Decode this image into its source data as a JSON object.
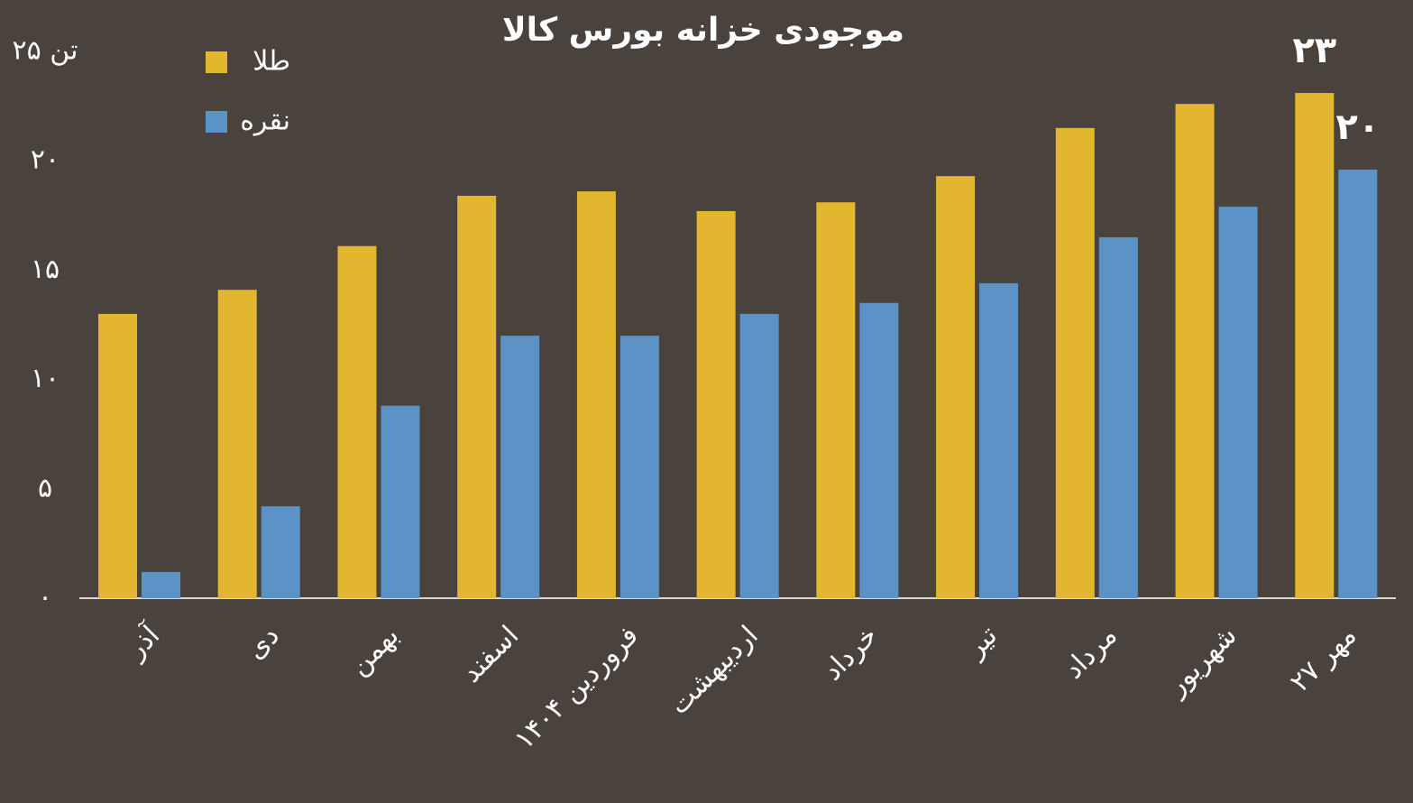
{
  "chart_data": {
    "type": "bar",
    "title": "موجودی خزانه بورس کالا",
    "categories": [
      "آذر",
      "دی",
      "بهمن",
      "اسفند",
      "فروردین ۱۴۰۴",
      "اردیبهشت",
      "خرداد",
      "تیر",
      "مرداد",
      "شهریور",
      "۲۷ مهر"
    ],
    "series": [
      {
        "name": "طلا",
        "color": "#e2b62e",
        "values": [
          13.0,
          14.1,
          16.1,
          18.4,
          18.6,
          17.7,
          18.1,
          19.3,
          21.5,
          22.6,
          23.1
        ],
        "value_labels": [
          null,
          null,
          null,
          null,
          null,
          null,
          null,
          null,
          null,
          null,
          "۲۳"
        ]
      },
      {
        "name": "نقره",
        "color": "#5b93c7",
        "values": [
          1.2,
          4.2,
          8.8,
          12.0,
          12.0,
          13.0,
          13.5,
          14.4,
          16.5,
          17.9,
          19.6
        ],
        "value_labels": [
          null,
          null,
          null,
          null,
          null,
          null,
          null,
          null,
          null,
          null,
          "۲۰"
        ]
      }
    ],
    "ylim": [
      0,
      25
    ],
    "yticks": [
      {
        "value": 0,
        "label": "۰"
      },
      {
        "value": 5,
        "label": "۵"
      },
      {
        "value": 10,
        "label": "۱۰"
      },
      {
        "value": 15,
        "label": "۱۵"
      },
      {
        "value": 20,
        "label": "۲۰"
      },
      {
        "value": 25,
        "label": "تن ۲۵"
      }
    ],
    "grid": false
  }
}
